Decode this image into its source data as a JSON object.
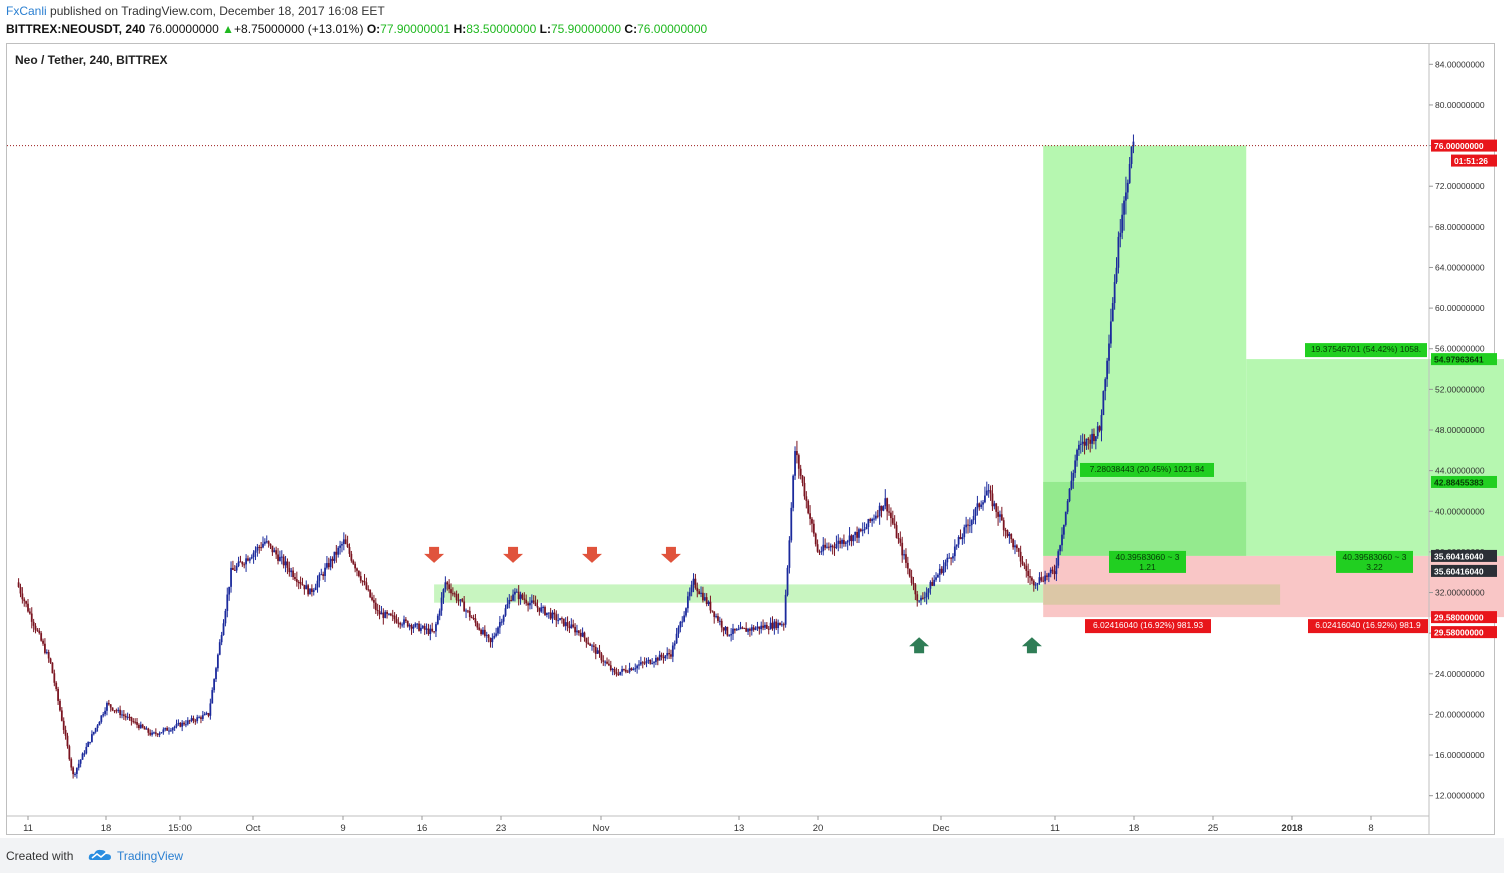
{
  "header": {
    "user": "FxCanli",
    "published_text": "published on TradingView.com, December 18, 2017 16:08 EET",
    "symbol_line": "BITTREX:NEOUSDT, 240",
    "last": "76.00000000",
    "change_arrow": "▲",
    "change": "+8.75000000 (+13.01%)",
    "o_label": "O:",
    "o_value": "77.90000001",
    "h_label": "H:",
    "h_value": "83.50000000",
    "l_label": "L:",
    "l_value": "75.90000000",
    "c_label": "C:",
    "c_value": "76.00000000"
  },
  "footer": {
    "created_with": "Created with",
    "brand": "TradingView",
    "brand_icon": "tradingview-cloud-icon"
  },
  "colors": {
    "up_candle": "#1b2a9c",
    "down_candle": "#7a1420",
    "zone_green": "#c8f5c0",
    "profit_light": "#b6f7b0",
    "profit_dark": "#8ee888",
    "stop_zone": "#f9c6c6",
    "entry_box": "#d8c7a2",
    "label_green": "#21cf21",
    "label_red": "#e8151b",
    "arrow_red": "#e0533c",
    "arrow_green": "#2f7d56",
    "price_line": "#9b1b1b"
  },
  "chart_data": {
    "type": "candlestick",
    "title": "Neo / Tether, 240, BITTREX",
    "ylim": [
      10,
      86
    ],
    "y_tick_labels": [
      "12.00000000",
      "16.00000000",
      "20.00000000",
      "24.00000000",
      "28.00000000",
      "32.00000000",
      "36.00000000",
      "40.00000000",
      "44.00000000",
      "48.00000000",
      "52.00000000",
      "56.00000000",
      "60.00000000",
      "64.00000000",
      "68.00000000",
      "72.00000000",
      "76.00000000",
      "80.00000000",
      "84.00000000"
    ],
    "x_tick_labels": [
      "11",
      "18",
      "15:00",
      "Oct",
      "9",
      "16",
      "23",
      "Nov",
      "13",
      "20",
      "Dec",
      "11",
      "18",
      "25",
      "2018",
      "8"
    ],
    "price_path_approx": [
      {
        "date": "2017-09-10",
        "close": 33
      },
      {
        "date": "2017-09-13",
        "close": 25
      },
      {
        "date": "2017-09-15",
        "close": 14
      },
      {
        "date": "2017-09-18",
        "close": 21
      },
      {
        "date": "2017-09-22",
        "close": 18
      },
      {
        "date": "2017-09-27",
        "close": 20
      },
      {
        "date": "2017-09-29",
        "close": 34
      },
      {
        "date": "2017-10-02",
        "close": 37
      },
      {
        "date": "2017-10-06",
        "close": 32
      },
      {
        "date": "2017-10-09",
        "close": 37
      },
      {
        "date": "2017-10-12",
        "close": 30
      },
      {
        "date": "2017-10-17",
        "close": 28
      },
      {
        "date": "2017-10-18",
        "close": 33
      },
      {
        "date": "2017-10-22",
        "close": 27
      },
      {
        "date": "2017-10-24",
        "close": 32
      },
      {
        "date": "2017-10-30",
        "close": 28
      },
      {
        "date": "2017-11-02",
        "close": 24
      },
      {
        "date": "2017-11-07",
        "close": 26
      },
      {
        "date": "2017-11-09",
        "close": 33
      },
      {
        "date": "2017-11-12",
        "close": 28
      },
      {
        "date": "2017-11-17",
        "close": 29
      },
      {
        "date": "2017-11-18",
        "close": 46
      },
      {
        "date": "2017-11-20",
        "close": 36
      },
      {
        "date": "2017-11-24",
        "close": 38
      },
      {
        "date": "2017-11-26",
        "close": 41
      },
      {
        "date": "2017-11-29",
        "close": 31
      },
      {
        "date": "2017-12-02",
        "close": 36
      },
      {
        "date": "2017-12-05",
        "close": 42
      },
      {
        "date": "2017-12-09",
        "close": 33
      },
      {
        "date": "2017-12-11",
        "close": 34
      },
      {
        "date": "2017-12-13",
        "close": 46
      },
      {
        "date": "2017-12-15",
        "close": 48
      },
      {
        "date": "2017-12-17",
        "close": 70
      },
      {
        "date": "2017-12-18",
        "close": 76
      }
    ],
    "last_price": {
      "value": 76.0,
      "label": "76.00000000",
      "countdown": "01:51:26"
    },
    "price_labels": [
      {
        "value": 54.97963641,
        "label": "54.97963641",
        "color": "green"
      },
      {
        "value": 42.88455383,
        "label": "42.88455383",
        "color": "green"
      },
      {
        "value": 35.6041604,
        "label": "35.60416040",
        "color": "dark"
      },
      {
        "value": 35.6041604,
        "label": "35.60416040",
        "color": "dark"
      },
      {
        "value": 29.58,
        "label": "29.58000000",
        "color": "red"
      },
      {
        "value": 29.58,
        "label": "29.58000000",
        "color": "red"
      }
    ],
    "support_zone": {
      "from": 31.0,
      "to": 32.8,
      "start": "2017-10-17",
      "end": "2017-12-10"
    },
    "positions": [
      {
        "entry": 35.6041604,
        "target": 42.88455383,
        "stop": 29.58,
        "start": "2017-12-10",
        "end": "2017-12-28",
        "target_text": "7.28038443 (20.45%) 1021.84",
        "entry_text_1": "40.39583060 ~ 3",
        "entry_text_2": "1.21",
        "stop_text": "6.02416040 (16.92%) 981.93"
      },
      {
        "entry": 35.6041604,
        "target": 54.97963641,
        "stop": 29.58,
        "start": "2017-12-28",
        "end": "2018-01-24",
        "target_text": "19.37546701 (54.42%) 1058.",
        "entry_text_1": "40.39583060 ~ 3",
        "entry_text_2": "3.22",
        "stop_text": "6.02416040 (16.92%) 981.9"
      }
    ],
    "big_profit_zone": {
      "from": 35.6041604,
      "to": 76.0,
      "start": "2017-12-10",
      "end": "2017-12-28"
    },
    "entry_box": {
      "from": 30.8,
      "to": 32.8,
      "start": "2017-12-10",
      "end": "2017-12-31"
    },
    "arrows_down": [
      "2017-10-17",
      "2017-10-24",
      "2017-10-31",
      "2017-11-07"
    ],
    "arrows_up": [
      "2017-11-29",
      "2017-12-09"
    ],
    "grid": false,
    "legend": "none"
  }
}
